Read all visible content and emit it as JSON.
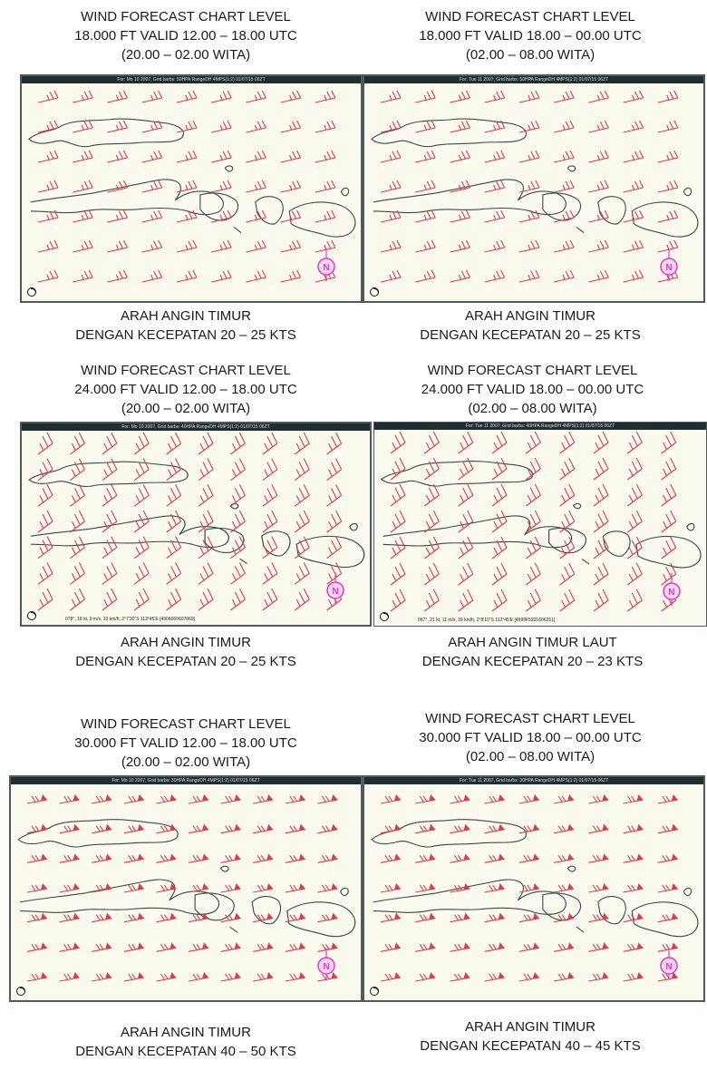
{
  "colors": {
    "barb": "#dd3b4e",
    "coast": "#3a4a4a",
    "map_bg": "#fbfaee",
    "title_bar": "#1f2e30",
    "marker": "#e23cc2"
  },
  "icons": {
    "marker": "circled-n-marker",
    "clock": "clock-icon"
  },
  "panels": [
    {
      "id": "p1",
      "title_lines": [
        "WIND FORECAST CHART LEVEL",
        "18.000 FT VALID 12.00 – 18.00 UTC",
        "(20.00 – 02.00 WITA)"
      ],
      "caption_lines": [
        "ARAH ANGIN TIMUR",
        "DENGAN KECEPATAN 20 – 25 KTS"
      ],
      "map_header": "For: Mo 10 2007, Grid barbs: 50HPA RangeDH 4MPS(1:2) 01/07/15 06ZT",
      "map_footer": "",
      "marker_label": "N"
    },
    {
      "id": "p2",
      "title_lines": [
        "WIND FORECAST CHART LEVEL",
        "18.000 FT VALID 18.00 – 00.00 UTC",
        "(02.00 – 08.00 WITA)"
      ],
      "caption_lines": [
        "ARAH ANGIN TIMUR",
        "DENGAN KECEPATAN 20 – 25 KTS"
      ],
      "map_header": "For: Tue 11 2007, Grid barbs: 50HPA RangeDH 4MPS(1:2) 01/07/15 06ZT",
      "map_footer": "",
      "marker_label": "N"
    },
    {
      "id": "p3",
      "title_lines": [
        "WIND FORECAST CHART LEVEL",
        "24.000 FT VALID 12.00 – 18.00 UTC",
        "(20.00 – 02.00 WITA)"
      ],
      "caption_lines": [
        "ARAH ANGIN TIMUR",
        "DENGAN KECEPATAN 20 – 25 KTS"
      ],
      "map_header": "For: Mo 10 2007, Grid barbs: 40HPA RangeDH 4MPS(1:2) 01/07/15 06ZT",
      "map_footer": "078°, 18 kt, 9 m/s, 33 km/h, 2°7'30\"S 112°45'E [4906060607869]",
      "marker_label": "N"
    },
    {
      "id": "p4",
      "title_lines": [
        "WIND FORECAST CHART LEVEL",
        "24.000 FT VALID 18.00 – 00.00 UTC",
        "(02.00 – 08.00 WITA)"
      ],
      "caption_lines": [
        "ARAH ANGIN TIMUR LAUT",
        "DENGAN KECEPATAN 20 – 23 KTS"
      ],
      "map_header": "For: Tue 11 2007, Grid barbs: 40HPA RangeDH 4MPS(1:2) 01/07/15 06ZT",
      "map_footer": "067°, 21 kt, 11 m/s, 39 km/h, 2°8'10\"S 112°45'E [4999F5201606251]",
      "marker_label": "N"
    },
    {
      "id": "p5",
      "title_lines": [
        "WIND FORECAST CHART LEVEL",
        "30.000 FT VALID 12.00 – 18.00 UTC",
        "(20.00 – 02.00 WITA)"
      ],
      "caption_lines": [
        "ARAH ANGIN TIMUR",
        "DENGAN KECEPATAN 40 – 50 KTS"
      ],
      "map_header": "For: Mo 10 2007, Grid barbs: 30HPA RangeDH 4MPS(1:2) 01/07/15 06ZT",
      "map_footer": "",
      "marker_label": "N"
    },
    {
      "id": "p6",
      "title_lines": [
        "WIND FORECAST CHART LEVEL",
        "30.000 FT VALID 18.00 – 00.00 UTC",
        "(02.00 – 08.00 WITA)"
      ],
      "caption_lines": [
        "ARAH ANGIN  TIMUR",
        "DENGAN KECEPATAN 40 – 45 KTS"
      ],
      "map_header": "For: Tue 11 2007, Grid barbs: 30HPA RangeDH 4MPS(1:2) 01/07/15 06ZT",
      "map_footer": "",
      "marker_label": "N"
    }
  ]
}
